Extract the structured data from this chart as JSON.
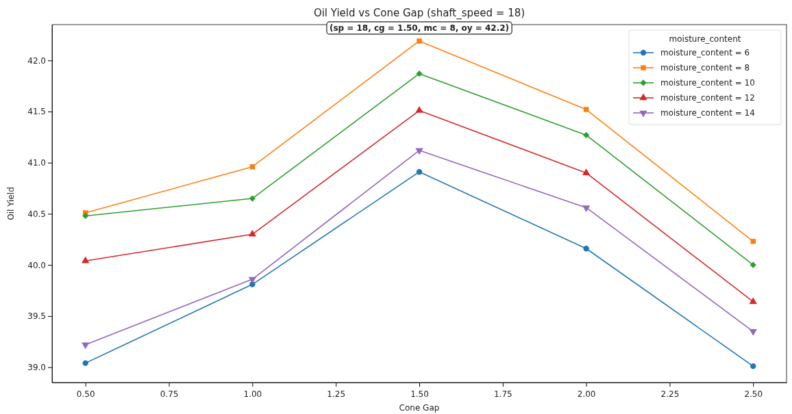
{
  "chart_data": {
    "type": "line",
    "title": "Oil Yield vs Cone Gap (shaft_speed = 18)",
    "xlabel": "Cone Gap",
    "ylabel": "Oil Yield",
    "legend_title": "moisture_content",
    "legend": "top right",
    "grid": false,
    "line_style": "solid",
    "x": [
      0.5,
      1.0,
      1.5,
      2.0,
      2.5
    ],
    "xlim": [
      0.4,
      2.6
    ],
    "xticks": [
      {
        "value": 0.5,
        "label": "0.50"
      },
      {
        "value": 0.75,
        "label": "0.75"
      },
      {
        "value": 1.0,
        "label": "1.00"
      },
      {
        "value": 1.25,
        "label": "1.25"
      },
      {
        "value": 1.5,
        "label": "1.50"
      },
      {
        "value": 1.75,
        "label": "1.75"
      },
      {
        "value": 2.0,
        "label": "2.00"
      },
      {
        "value": 2.25,
        "label": "2.25"
      },
      {
        "value": 2.5,
        "label": "2.50"
      }
    ],
    "ylim": [
      38.85,
      42.35
    ],
    "yticks": [
      {
        "value": 39,
        "label": "39.0"
      },
      {
        "value": 39.5,
        "label": "39.5"
      },
      {
        "value": 40,
        "label": "40.0"
      },
      {
        "value": 40.5,
        "label": "40.5"
      },
      {
        "value": 41,
        "label": "41.0"
      },
      {
        "value": 41.5,
        "label": "41.5"
      },
      {
        "value": 42,
        "label": "42.0"
      }
    ],
    "series": [
      {
        "name": "moisture_content = 6",
        "color": "#1f77b4",
        "marker": "circle",
        "values": [
          39.04,
          39.81,
          40.91,
          40.16,
          39.01
        ]
      },
      {
        "name": "moisture_content = 8",
        "color": "#ff7f0e",
        "marker": "square",
        "values": [
          40.51,
          40.96,
          42.19,
          41.52,
          40.23
        ]
      },
      {
        "name": "moisture_content = 10",
        "color": "#2ca02c",
        "marker": "diamond",
        "values": [
          40.48,
          40.65,
          41.87,
          41.27,
          40.0
        ]
      },
      {
        "name": "moisture_content = 12",
        "color": "#d62728",
        "marker": "triangle",
        "values": [
          40.04,
          40.3,
          41.51,
          40.9,
          39.64
        ]
      },
      {
        "name": "moisture_content = 14",
        "color": "#9467bd",
        "marker": "triangle-down",
        "values": [
          39.22,
          39.86,
          41.12,
          40.56,
          39.35
        ]
      }
    ],
    "annotations": [
      {
        "text": "(sp = 18, cg = 1.50, mc = 8, oy = 42.2)",
        "x": 1.5,
        "y": 42.19
      }
    ]
  }
}
